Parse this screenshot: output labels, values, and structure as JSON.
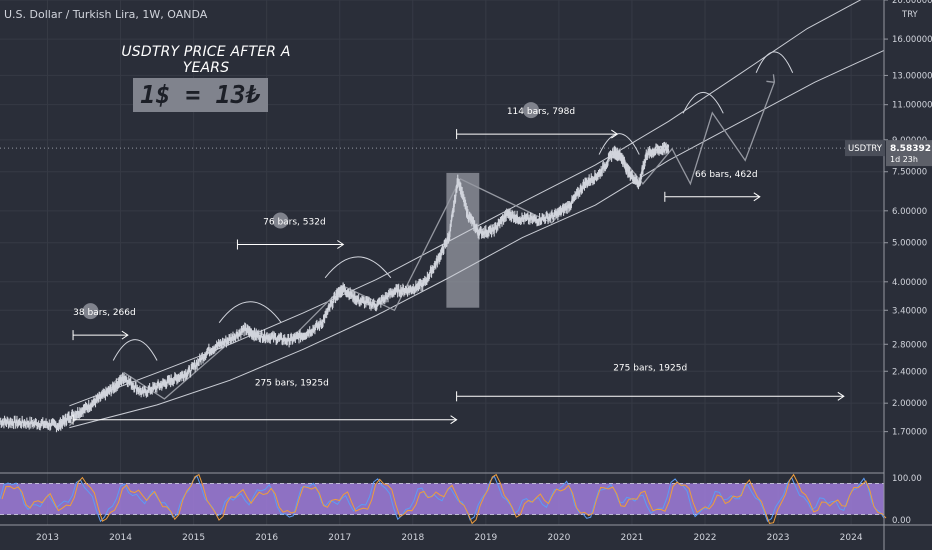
{
  "header": {
    "symbol_line": "U.S. Dollar / Turkish Lira, 1W, OANDA"
  },
  "headline": {
    "title": "USDTRY PRICE AFTER A YEARS",
    "big_text": "1$ = 13₺"
  },
  "price_badge": {
    "symbol": "USDTRY",
    "price": "8.58392",
    "countdown": "1d 23h"
  },
  "colors": {
    "bg": "#2a2e39",
    "grid": "#363a45",
    "candle": "#d1d4dc",
    "channel": "#c9ccd4",
    "rsi_band": "#a07cdc",
    "rsi_line_a": "#5b9cf6",
    "rsi_line_b": "#ef9d3a",
    "highlight": "#9598a1"
  },
  "annotations": [
    {
      "label": "38 bars, 266d",
      "from": 2013.35,
      "to": 2014.1,
      "price": 2.95
    },
    {
      "label": "76 bars, 532d",
      "from": 2015.6,
      "to": 2017.05,
      "price": 4.95
    },
    {
      "label": "114 bars, 798d",
      "from": 2018.6,
      "to": 2020.8,
      "price": 9.3
    },
    {
      "label": "66 bars, 462d",
      "from": 2021.45,
      "to": 2022.75,
      "price": 6.5
    },
    {
      "label": "275 bars, 1925d",
      "from": 2013.35,
      "to": 2018.6,
      "price": 1.82
    },
    {
      "label": "275 bars, 1925d",
      "from": 2018.6,
      "to": 2023.9,
      "price": 2.08
    }
  ],
  "chart_data": [
    {
      "type": "line",
      "title": "U.S. Dollar / Turkish Lira, 1W, OANDA",
      "unit": "TRY",
      "y_scale": "log",
      "ylim": [
        1.35,
        20.0
      ],
      "xlim": [
        2012.35,
        2024.45
      ],
      "x_ticks": [
        "2013",
        "2014",
        "2015",
        "2016",
        "2017",
        "2018",
        "2019",
        "2020",
        "2021",
        "2022",
        "2023",
        "2024"
      ],
      "y_ticks": [
        "1.70000",
        "2.00000",
        "2.40000",
        "2.80000",
        "3.40000",
        "4.00000",
        "5.00000",
        "6.00000",
        "7.50000",
        "9.00000",
        "11.00000",
        "13.00000",
        "16.00000",
        "20.00000"
      ],
      "last_price": 8.58392,
      "series": [
        {
          "x": [
            2012.35,
            2012.6,
            2012.9,
            2013.15,
            2013.3,
            2013.5,
            2013.7,
            2013.9,
            2014.05,
            2014.3,
            2014.55,
            2014.75,
            2014.95,
            2015.2,
            2015.45,
            2015.7,
            2015.85,
            2016.05,
            2016.3,
            2016.5,
            2016.75,
            2016.95,
            2017.05,
            2017.25,
            2017.5,
            2017.75,
            2017.95,
            2018.15,
            2018.35,
            2018.5,
            2018.62,
            2018.75,
            2018.9,
            2019.1,
            2019.3,
            2019.45,
            2019.7,
            2019.95,
            2020.15,
            2020.35,
            2020.55,
            2020.75,
            2020.85,
            2020.95,
            2021.1,
            2021.2,
            2021.35,
            2021.5
          ],
          "y": [
            1.8,
            1.79,
            1.78,
            1.76,
            1.85,
            1.93,
            2.05,
            2.18,
            2.32,
            2.12,
            2.22,
            2.3,
            2.4,
            2.7,
            2.85,
            3.05,
            2.95,
            2.92,
            2.86,
            2.95,
            3.15,
            3.7,
            3.85,
            3.6,
            3.5,
            3.8,
            3.82,
            3.95,
            4.55,
            5.2,
            7.2,
            5.9,
            5.3,
            5.35,
            5.9,
            5.75,
            5.7,
            5.85,
            6.2,
            7.0,
            7.4,
            8.4,
            8.2,
            7.5,
            7.0,
            8.3,
            8.5,
            8.58
          ]
        }
      ],
      "indicator": {
        "name": "RSI",
        "ylim": [
          0,
          100
        ],
        "upper_band": 80,
        "lower_band": 20
      }
    }
  ]
}
